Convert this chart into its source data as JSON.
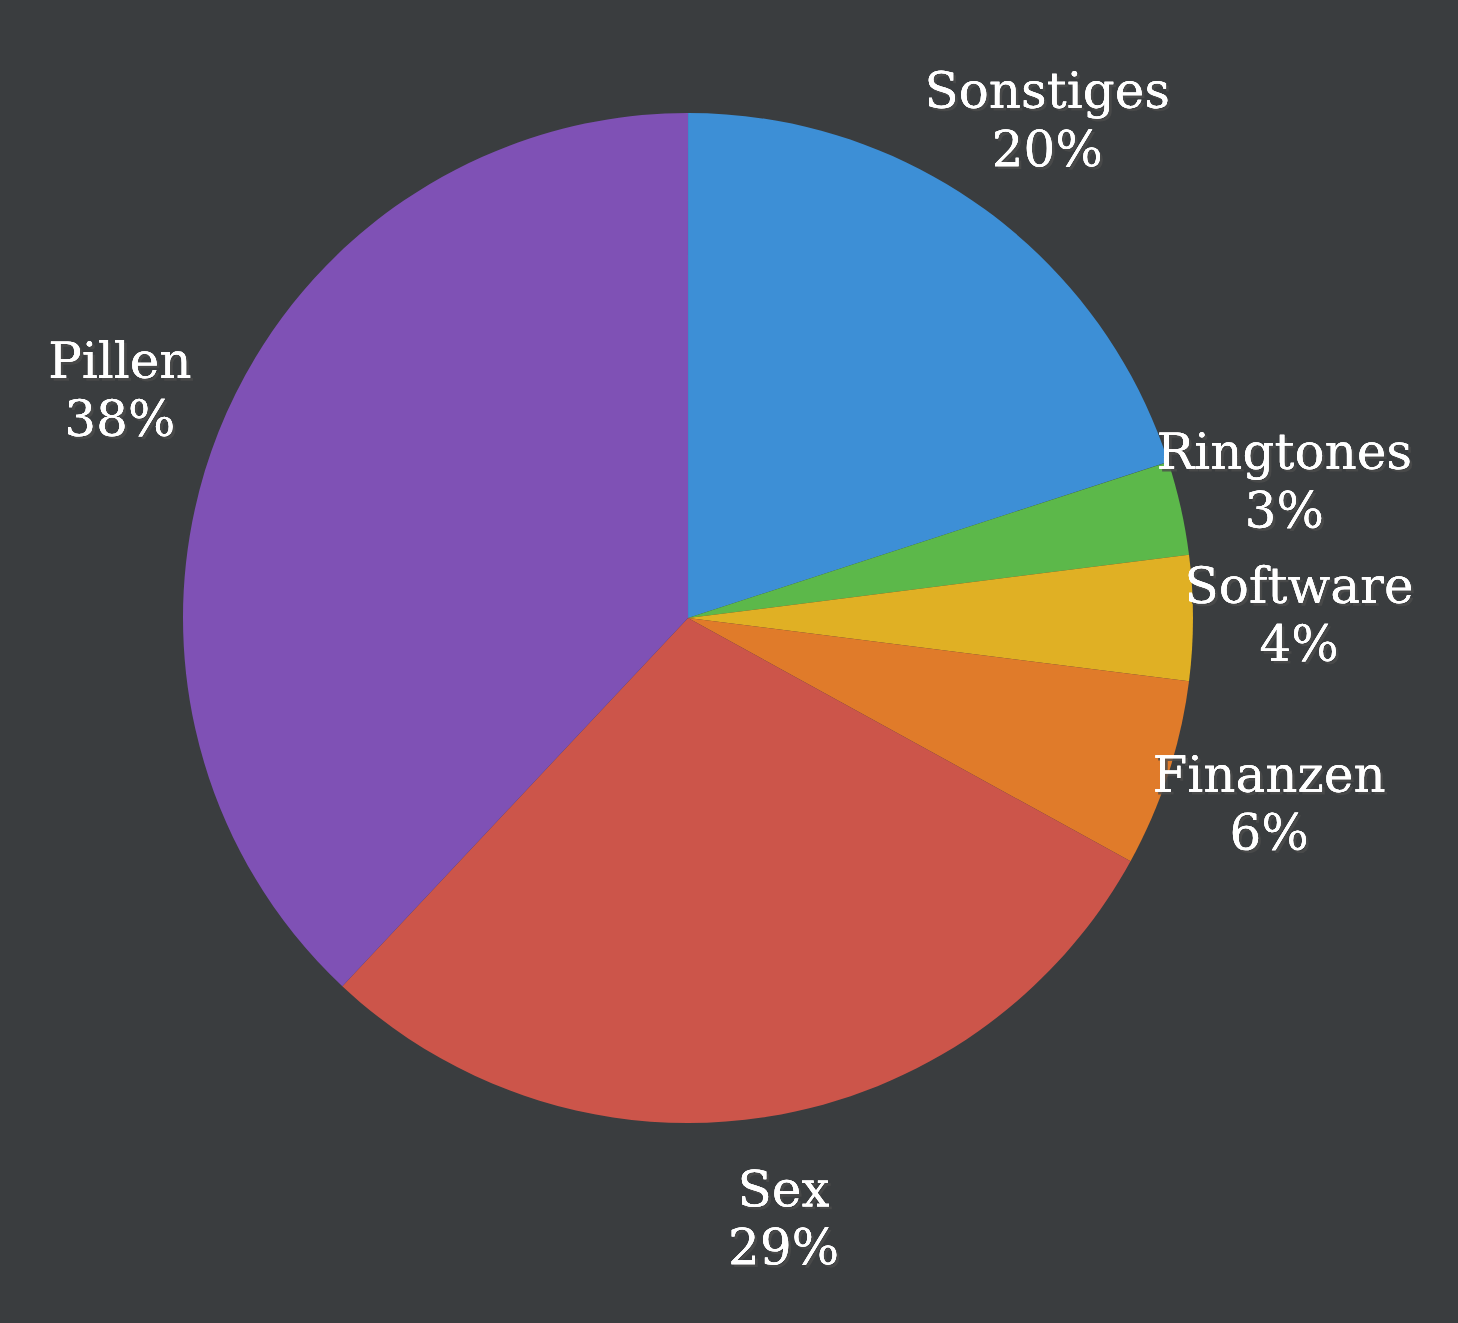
{
  "chart_data": {
    "type": "pie",
    "categories": [
      "Sonstiges",
      "Ringtones",
      "Software",
      "Finanzen",
      "Sex",
      "Pillen"
    ],
    "values": [
      20,
      3,
      4,
      6,
      29,
      38
    ],
    "value_labels": [
      "20%",
      "3%",
      "4%",
      "6%",
      "29%",
      "38%"
    ],
    "colors": [
      "#3d8fd6",
      "#5cb84a",
      "#e0b024",
      "#e07b2a",
      "#cc554a",
      "#7f51b5"
    ]
  }
}
